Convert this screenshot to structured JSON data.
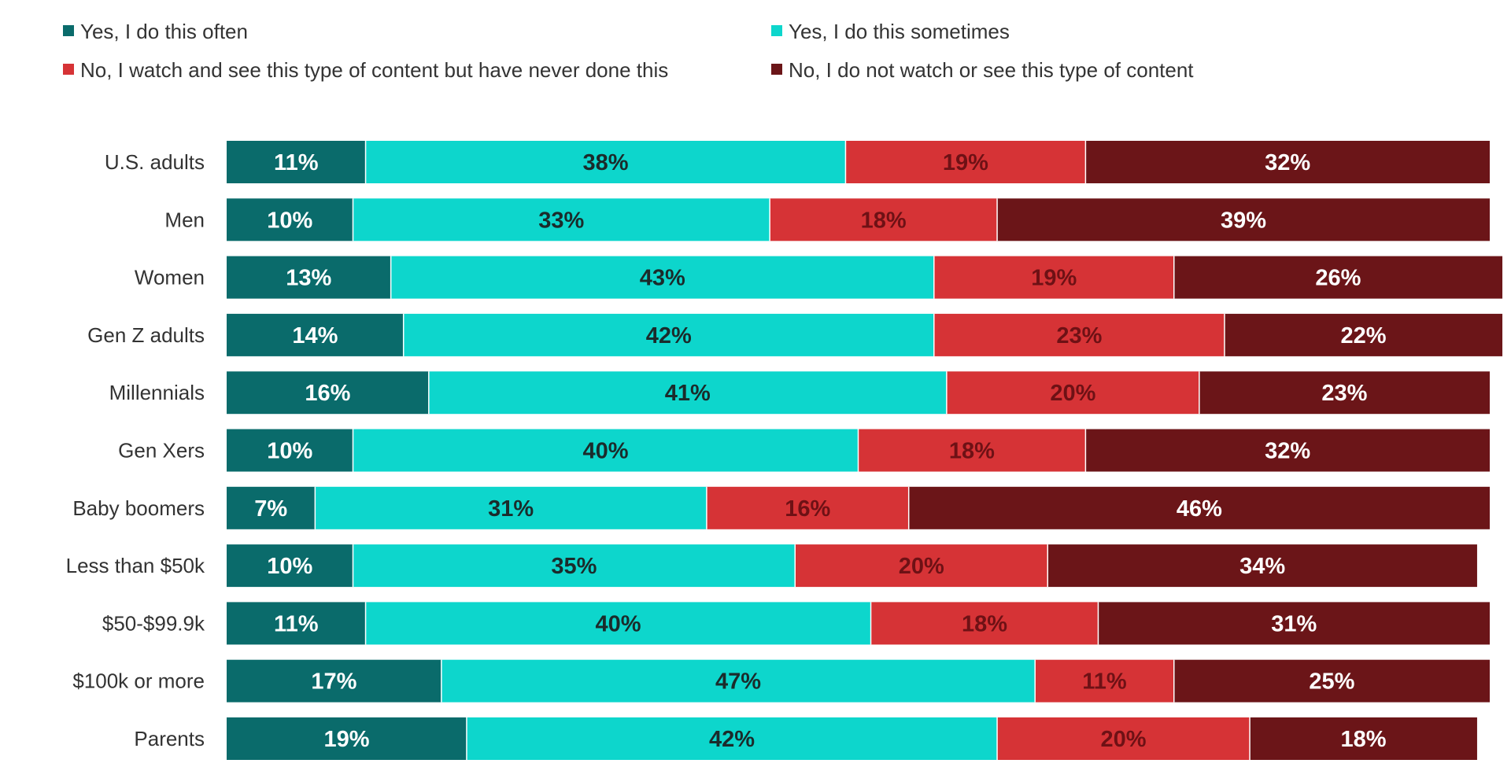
{
  "chart_data": {
    "type": "bar",
    "orientation": "horizontal",
    "stacked": true,
    "title": "",
    "xlabel": "",
    "ylabel": "",
    "xlim": [
      0,
      100
    ],
    "unit": "%",
    "grid": false,
    "legend_position": "top",
    "categories": [
      "U.S. adults",
      "Men",
      "Women",
      "Gen Z adults",
      "Millennials",
      "Gen Xers",
      "Baby boomers",
      "Less than $50k",
      "$50-$99.9k",
      "$100k or more",
      "Parents"
    ],
    "series": [
      {
        "name": "Yes, I do this often",
        "color": "#0a6b6b",
        "label_color": "#ffffff",
        "values": [
          11,
          10,
          13,
          14,
          16,
          10,
          7,
          10,
          11,
          17,
          19
        ]
      },
      {
        "name": "Yes, I do this sometimes",
        "color": "#0dd6cc",
        "label_color": "#1b2b2b",
        "values": [
          38,
          33,
          43,
          42,
          41,
          40,
          31,
          35,
          40,
          47,
          42
        ]
      },
      {
        "name": "No, I watch and see this type of content but have never done this",
        "color": "#d63336",
        "label_color": "#6e1115",
        "values": [
          19,
          18,
          19,
          23,
          20,
          18,
          16,
          20,
          18,
          11,
          20
        ]
      },
      {
        "name": "No, I do not watch or see this type of content",
        "color": "#6b1518",
        "label_color": "#ffffff",
        "values": [
          32,
          39,
          26,
          22,
          23,
          32,
          46,
          34,
          31,
          25,
          18
        ]
      }
    ]
  }
}
